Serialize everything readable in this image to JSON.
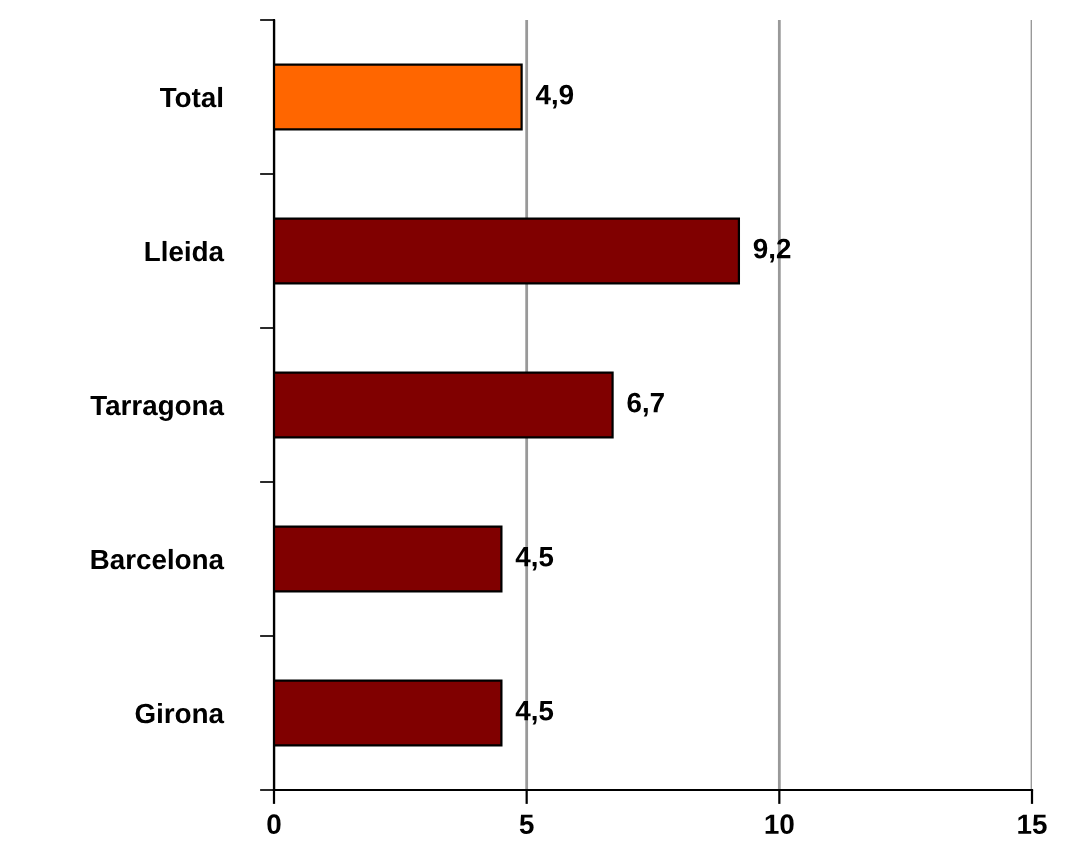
{
  "chart_data": {
    "type": "bar",
    "orientation": "horizontal",
    "categories": [
      "Total",
      "Lleida",
      "Tarragona",
      "Barcelona",
      "Girona"
    ],
    "values": [
      4.9,
      9.2,
      6.7,
      4.5,
      4.5
    ],
    "colors": [
      "#ff6600",
      "#800000",
      "#800000",
      "#800000",
      "#800000"
    ],
    "value_labels": [
      "4,9",
      "9,2",
      "6,7",
      "4,5",
      "4,5"
    ],
    "xlim": [
      0,
      15
    ],
    "xticks": [
      0,
      5,
      10,
      15
    ],
    "grid": "x",
    "legend": false
  }
}
